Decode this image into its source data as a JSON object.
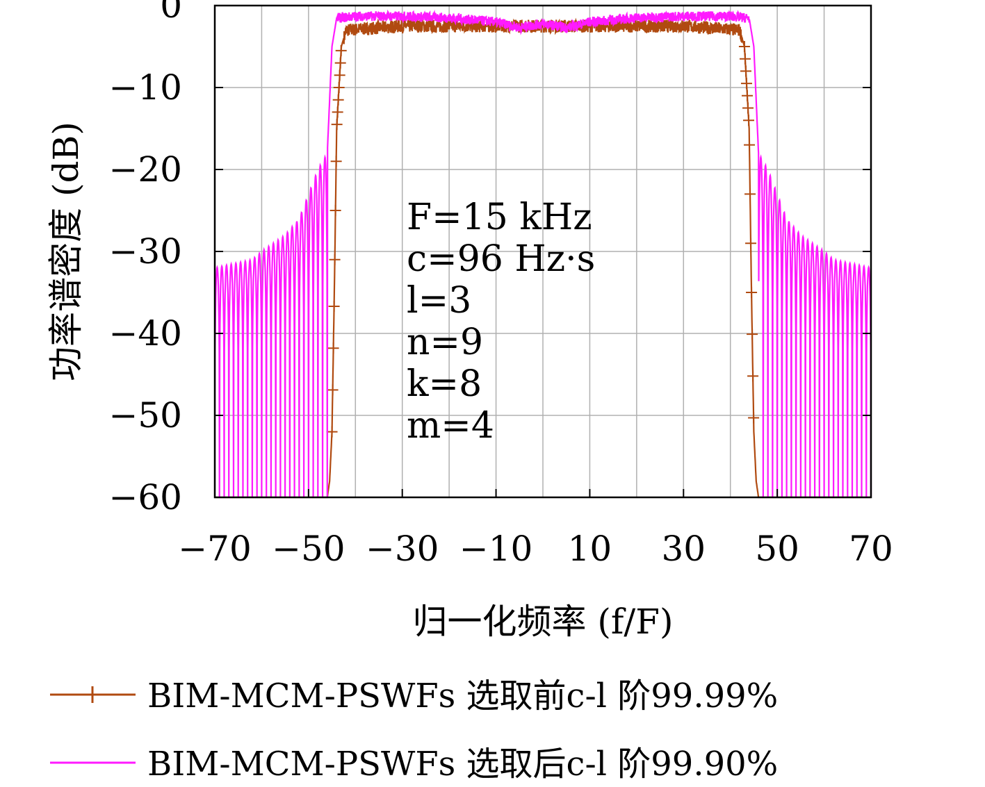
{
  "chart_data": {
    "type": "line",
    "title": "",
    "xlabel": "归一化频率 (f/F)",
    "ylabel": "功率谱密度 (dB)",
    "xlim": [
      -70,
      70
    ],
    "ylim": [
      -60,
      0
    ],
    "xticks": [
      -70,
      -50,
      -30,
      -10,
      10,
      30,
      50,
      70
    ],
    "xtick_labels": [
      "−70",
      "−50",
      "−30",
      "−10",
      "10",
      "30",
      "50",
      "70"
    ],
    "yticks": [
      0,
      -10,
      -20,
      -30,
      -40,
      -50,
      -60
    ],
    "ytick_labels": [
      "0",
      "−10",
      "−20",
      "−30",
      "−40",
      "−50",
      "−60"
    ],
    "grid": true,
    "legend_placement": "below",
    "annotations": [
      "F=15 kHz",
      "c=96 Hz·s",
      "l=3",
      "n=9",
      "k=8",
      "m=4"
    ],
    "series": [
      {
        "name": "BIM-MCM-PSWFs 选取前c-l 阶99.99%",
        "color": "#b04a10",
        "marker": "plus",
        "x": [
          -70,
          -46,
          -45.5,
          -45,
          -44.5,
          -44,
          -43,
          -42,
          -30,
          -20,
          -10,
          -5,
          0,
          5,
          10,
          20,
          30,
          42,
          43,
          44,
          44.5,
          45,
          45.5,
          46,
          70
        ],
        "y": [
          -60,
          -60,
          -58,
          -52,
          -35,
          -15,
          -5,
          -3,
          -2.5,
          -2.5,
          -2.5,
          -2.5,
          -2.5,
          -2.5,
          -2.5,
          -2.5,
          -2.5,
          -3,
          -5,
          -15,
          -35,
          -52,
          -58,
          -60,
          -60
        ]
      },
      {
        "name": "BIM-MCM-PSWFs 选取后c-l 阶99.90%",
        "color": "#ff1aff",
        "marker": "none",
        "x": [
          -70,
          -62,
          -60,
          -55,
          -52,
          -50,
          -48,
          -46,
          -45,
          -44,
          -43,
          -40,
          -30,
          -20,
          -10,
          -5,
          0,
          5,
          10,
          20,
          30,
          40,
          43,
          44,
          45,
          46,
          48,
          50,
          52,
          55,
          60,
          62,
          70
        ],
        "y": [
          -32,
          -31,
          -30,
          -28,
          -26,
          -23,
          -20,
          -18,
          -5,
          -1.5,
          -1.5,
          -1.3,
          -1.3,
          -1.5,
          -2.0,
          -2.7,
          -2.2,
          -2.7,
          -2.0,
          -1.5,
          -1.3,
          -1.3,
          -1.5,
          -1.5,
          -5,
          -18,
          -20,
          -23,
          -26,
          -28,
          -30,
          -31,
          -32
        ]
      }
    ]
  },
  "legend": {
    "items": [
      "BIM-MCM-PSWFs 选取前c-l 阶99.99%",
      "BIM-MCM-PSWFs 选取后c-l 阶99.90%"
    ]
  }
}
